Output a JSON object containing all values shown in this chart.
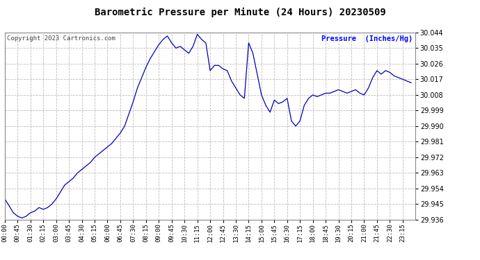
{
  "title": "Barometric Pressure per Minute (24 Hours) 20230509",
  "ylabel": "Pressure  (Inches/Hg)",
  "copyright": "Copyright 2023 Cartronics.com",
  "line_color": "#0000bb",
  "background_color": "#ffffff",
  "grid_color": "#bbbbbb",
  "ylim": [
    29.936,
    30.044
  ],
  "yticks": [
    29.936,
    29.945,
    29.954,
    29.963,
    29.972,
    29.981,
    29.99,
    29.999,
    30.008,
    30.017,
    30.026,
    30.035,
    30.044
  ],
  "xtick_labels": [
    "00:00",
    "00:45",
    "01:30",
    "02:15",
    "03:00",
    "03:45",
    "04:30",
    "05:15",
    "06:00",
    "06:45",
    "07:30",
    "08:15",
    "09:00",
    "09:45",
    "10:30",
    "11:15",
    "12:00",
    "12:45",
    "13:30",
    "14:15",
    "15:00",
    "15:45",
    "16:30",
    "17:15",
    "18:00",
    "18:45",
    "19:30",
    "20:15",
    "21:00",
    "21:45",
    "22:30",
    "23:15"
  ],
  "data_profile": {
    "00:00": 29.948,
    "00:15": 29.944,
    "00:30": 29.94,
    "00:45": 29.938,
    "01:00": 29.937,
    "01:15": 29.938,
    "01:30": 29.94,
    "01:45": 29.941,
    "02:00": 29.943,
    "02:15": 29.942,
    "02:30": 29.943,
    "02:45": 29.945,
    "03:00": 29.948,
    "03:15": 29.952,
    "03:30": 29.956,
    "03:45": 29.958,
    "04:00": 29.96,
    "04:15": 29.963,
    "04:30": 29.965,
    "04:45": 29.967,
    "05:00": 29.969,
    "05:15": 29.972,
    "05:30": 29.974,
    "05:45": 29.976,
    "06:00": 29.978,
    "06:15": 29.98,
    "06:30": 29.983,
    "06:45": 29.986,
    "07:00": 29.99,
    "07:15": 29.997,
    "07:30": 30.004,
    "07:45": 30.012,
    "08:00": 30.018,
    "08:15": 30.024,
    "08:30": 30.029,
    "08:45": 30.033,
    "09:00": 30.037,
    "09:15": 30.04,
    "09:30": 30.042,
    "09:45": 30.038,
    "10:00": 30.035,
    "10:15": 30.036,
    "10:30": 30.034,
    "10:45": 30.032,
    "11:00": 30.036,
    "11:15": 30.043,
    "11:30": 30.04,
    "11:45": 30.038,
    "12:00": 30.022,
    "12:15": 30.025,
    "12:30": 30.025,
    "12:45": 30.023,
    "13:00": 30.022,
    "13:15": 30.016,
    "13:30": 30.012,
    "13:45": 30.008,
    "14:00": 30.006,
    "14:15": 30.038,
    "14:30": 30.032,
    "14:45": 30.02,
    "15:00": 30.008,
    "15:15": 30.002,
    "15:30": 29.998,
    "15:45": 30.005,
    "16:00": 30.003,
    "16:15": 30.004,
    "16:30": 30.006,
    "16:45": 29.993,
    "17:00": 29.99,
    "17:15": 29.993,
    "17:30": 30.002,
    "17:45": 30.006,
    "18:00": 30.008,
    "18:15": 30.007,
    "18:30": 30.008,
    "18:45": 30.009,
    "19:00": 30.009,
    "19:15": 30.01,
    "19:30": 30.011,
    "19:45": 30.01,
    "20:00": 30.009,
    "20:15": 30.01,
    "20:30": 30.011,
    "20:45": 30.009,
    "21:00": 30.008,
    "21:15": 30.012,
    "21:30": 30.018,
    "21:45": 30.022,
    "22:00": 30.02,
    "22:15": 30.022,
    "22:30": 30.021,
    "22:45": 30.019,
    "23:00": 30.018,
    "23:15": 30.017,
    "23:30": 30.016,
    "23:45": 30.015
  }
}
